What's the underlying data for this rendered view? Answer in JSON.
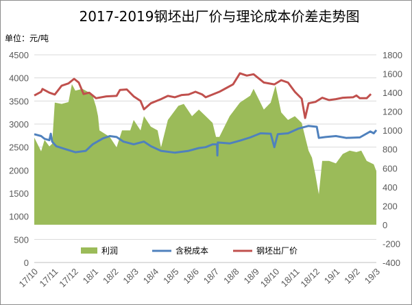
{
  "chart_data": {
    "type": "line",
    "title": "2017-2019钢坯出厂价与理论成本价差走势图",
    "unit_label": "单位：元/吨",
    "x_unit": "months since 17/10",
    "categories": [
      "17/10",
      "17/11",
      "17/12",
      "18/1",
      "18/2",
      "18/3",
      "18/4",
      "18/5",
      "18/6",
      "18/7",
      "18/8",
      "18/9",
      "18/10",
      "18/11",
      "18/12",
      "19/1",
      "19/2",
      "19/3"
    ],
    "left_axis": {
      "min": 0,
      "max": 4500,
      "step": 500,
      "ticks": [
        "0",
        "500",
        "1000",
        "1500",
        "2000",
        "2500",
        "3000",
        "3500",
        "4000",
        "4500"
      ]
    },
    "right_axis": {
      "min": -400,
      "max": 1800,
      "step": 200,
      "ticks": [
        "-400",
        "-200",
        "0",
        "200",
        "400",
        "600",
        "800",
        "1000",
        "1200",
        "1400",
        "1600",
        "1800"
      ]
    },
    "grid": true,
    "legend_position": "bottom-inside",
    "series": [
      {
        "name": "利润",
        "type": "area",
        "axis": "right",
        "color": "#9bbb59",
        "points": [
          [
            0,
            923
          ],
          [
            0.34,
            778
          ],
          [
            0.51,
            900
          ],
          [
            0.75,
            830
          ],
          [
            0.89,
            858
          ],
          [
            1.02,
            1295
          ],
          [
            1.36,
            1280
          ],
          [
            1.7,
            1300
          ],
          [
            1.87,
            1490
          ],
          [
            2.04,
            1420
          ],
          [
            2.39,
            1440
          ],
          [
            2.73,
            1400
          ],
          [
            2.9,
            1367
          ],
          [
            3.07,
            1250
          ],
          [
            3.17,
            1150
          ],
          [
            3.24,
            1000
          ],
          [
            3.75,
            930
          ],
          [
            4.09,
            820
          ],
          [
            4.36,
            1000
          ],
          [
            4.77,
            1000
          ],
          [
            4.94,
            1110
          ],
          [
            5.28,
            1000
          ],
          [
            5.45,
            1150
          ],
          [
            5.79,
            1040
          ],
          [
            6.13,
            1000
          ],
          [
            6.3,
            820
          ],
          [
            6.64,
            1110
          ],
          [
            7.16,
            1260
          ],
          [
            7.43,
            1280
          ],
          [
            7.84,
            1150
          ],
          [
            8.18,
            1220
          ],
          [
            8.52,
            1150
          ],
          [
            8.86,
            1080
          ],
          [
            9.03,
            930
          ],
          [
            9.2,
            930
          ],
          [
            9.71,
            1150
          ],
          [
            10.22,
            1295
          ],
          [
            10.73,
            1367
          ],
          [
            10.9,
            1440
          ],
          [
            11.41,
            1220
          ],
          [
            11.75,
            1295
          ],
          [
            11.99,
            1475
          ],
          [
            12.27,
            1190
          ],
          [
            12.61,
            1110
          ],
          [
            12.95,
            1150
          ],
          [
            13.29,
            1080
          ],
          [
            13.46,
            930
          ],
          [
            13.63,
            785
          ],
          [
            13.8,
            710
          ],
          [
            13.97,
            530
          ],
          [
            14.14,
            320
          ],
          [
            14.31,
            676
          ],
          [
            14.65,
            676
          ],
          [
            14.99,
            650
          ],
          [
            15.33,
            750
          ],
          [
            15.67,
            785
          ],
          [
            16.01,
            770
          ],
          [
            16.25,
            785
          ],
          [
            16.52,
            676
          ],
          [
            16.87,
            640
          ],
          [
            17,
            567
          ]
        ]
      },
      {
        "name": "含税成本",
        "type": "line",
        "axis": "left",
        "color": "#4f81bd",
        "points": [
          [
            0,
            2780
          ],
          [
            0.34,
            2740
          ],
          [
            0.51,
            2680
          ],
          [
            0.75,
            2650
          ],
          [
            0.82,
            2790
          ],
          [
            0.89,
            2620
          ],
          [
            1.09,
            2520
          ],
          [
            1.53,
            2460
          ],
          [
            2.04,
            2390
          ],
          [
            2.56,
            2420
          ],
          [
            2.9,
            2560
          ],
          [
            3.41,
            2690
          ],
          [
            3.75,
            2740
          ],
          [
            4.09,
            2720
          ],
          [
            4.43,
            2620
          ],
          [
            4.94,
            2560
          ],
          [
            5.45,
            2620
          ],
          [
            5.79,
            2520
          ],
          [
            6.3,
            2420
          ],
          [
            6.98,
            2380
          ],
          [
            7.67,
            2420
          ],
          [
            8.18,
            2480
          ],
          [
            8.52,
            2500
          ],
          [
            8.86,
            2560
          ],
          [
            9.08,
            2560
          ],
          [
            9.1,
            2320
          ],
          [
            9.12,
            2600
          ],
          [
            9.71,
            2580
          ],
          [
            10.22,
            2640
          ],
          [
            10.73,
            2710
          ],
          [
            11.24,
            2800
          ],
          [
            11.75,
            2790
          ],
          [
            11.93,
            2500
          ],
          [
            12.1,
            2780
          ],
          [
            12.61,
            2800
          ],
          [
            13.12,
            2900
          ],
          [
            13.63,
            2960
          ],
          [
            14.04,
            2940
          ],
          [
            14.14,
            2700
          ],
          [
            14.48,
            2720
          ],
          [
            14.99,
            2740
          ],
          [
            15.5,
            2700
          ],
          [
            16.18,
            2710
          ],
          [
            16.7,
            2840
          ],
          [
            16.87,
            2800
          ],
          [
            17,
            2870
          ]
        ]
      },
      {
        "name": "钢坯出厂价",
        "type": "line",
        "axis": "left",
        "color": "#c0504d",
        "points": [
          [
            0,
            3620
          ],
          [
            0.34,
            3700
          ],
          [
            0.41,
            3760
          ],
          [
            0.75,
            3680
          ],
          [
            1.02,
            3640
          ],
          [
            1.36,
            3830
          ],
          [
            1.7,
            3880
          ],
          [
            1.98,
            3980
          ],
          [
            2.21,
            3900
          ],
          [
            2.45,
            3650
          ],
          [
            2.73,
            3680
          ],
          [
            3.07,
            3560
          ],
          [
            3.58,
            3600
          ],
          [
            4.09,
            3610
          ],
          [
            4.26,
            3740
          ],
          [
            4.6,
            3750
          ],
          [
            4.94,
            3600
          ],
          [
            5.28,
            3500
          ],
          [
            5.45,
            3320
          ],
          [
            5.79,
            3450
          ],
          [
            6.3,
            3540
          ],
          [
            6.64,
            3610
          ],
          [
            6.98,
            3580
          ],
          [
            7.33,
            3630
          ],
          [
            7.67,
            3640
          ],
          [
            8.01,
            3700
          ],
          [
            8.35,
            3640
          ],
          [
            8.52,
            3580
          ],
          [
            8.86,
            3640
          ],
          [
            9.2,
            3700
          ],
          [
            9.54,
            3780
          ],
          [
            9.88,
            3860
          ],
          [
            10.22,
            4100
          ],
          [
            10.56,
            4050
          ],
          [
            10.9,
            4080
          ],
          [
            11.41,
            3900
          ],
          [
            11.93,
            3860
          ],
          [
            12.27,
            3950
          ],
          [
            12.61,
            3900
          ],
          [
            12.95,
            3700
          ],
          [
            13.29,
            3550
          ],
          [
            13.46,
            3130
          ],
          [
            13.63,
            3450
          ],
          [
            13.97,
            3480
          ],
          [
            14.31,
            3570
          ],
          [
            14.65,
            3520
          ],
          [
            14.99,
            3540
          ],
          [
            15.33,
            3570
          ],
          [
            15.84,
            3580
          ],
          [
            16.01,
            3620
          ],
          [
            16.18,
            3560
          ],
          [
            16.52,
            3560
          ],
          [
            16.73,
            3650
          ]
        ]
      }
    ]
  }
}
